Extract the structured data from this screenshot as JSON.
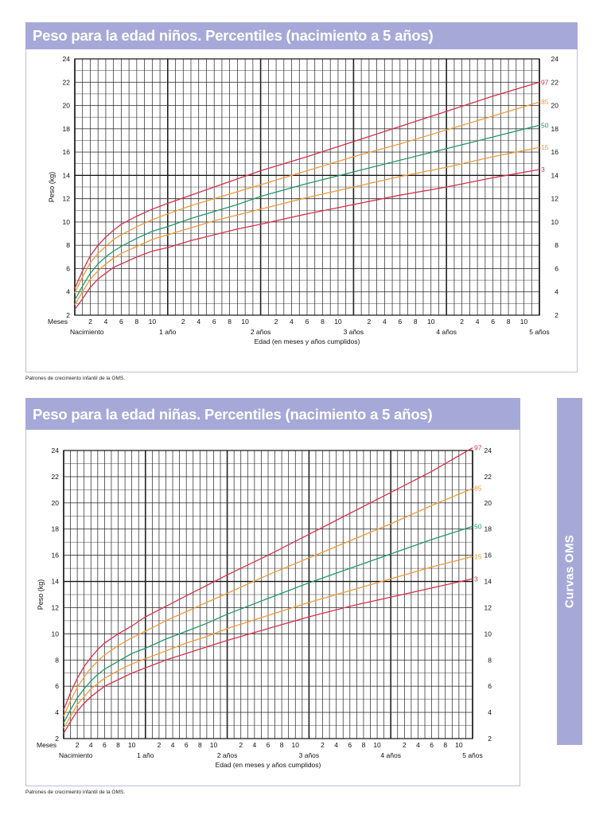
{
  "source_note": "Patrones de crecimiento infantil de la OMS.",
  "side_tab": {
    "label": "Curvas OMS"
  },
  "colors": {
    "header_bg": "#a6a9d8",
    "grid": "#333333",
    "p97": "#d8314a",
    "p85": "#ef9a3a",
    "p50": "#1f9a6a",
    "p15": "#ef9a3a",
    "p3": "#d8314a"
  },
  "chart_data": [
    {
      "type": "line",
      "title": "Peso para la edad niños. Percentiles (nacimiento a 5 años)",
      "xlabel": "Edad (en meses y años cumplidos)",
      "ylabel": "Peso (kg)",
      "months_label": "Meses",
      "xlim": [
        0,
        60
      ],
      "ylim": [
        2,
        24
      ],
      "yticks": [
        2,
        4,
        6,
        8,
        10,
        12,
        14,
        16,
        18,
        20,
        22,
        24
      ],
      "month_tick_labels": [
        "2",
        "4",
        "6",
        "8",
        "10"
      ],
      "year_labels": [
        "Nacimiento",
        "1 año",
        "2 años",
        "3 años",
        "4 años",
        "5 años"
      ],
      "x": [
        0,
        1,
        2,
        3,
        4,
        5,
        6,
        8,
        10,
        12,
        15,
        18,
        21,
        24,
        30,
        36,
        42,
        48,
        54,
        60
      ],
      "series": [
        {
          "name": "97",
          "color": "#d8314a",
          "values": [
            4.3,
            5.8,
            7.1,
            8.0,
            8.7,
            9.3,
            9.8,
            10.5,
            11.1,
            11.6,
            12.3,
            13.0,
            13.7,
            14.4,
            15.6,
            16.9,
            18.2,
            19.5,
            20.8,
            22.0
          ]
        },
        {
          "name": "85",
          "color": "#ef9a3a",
          "values": [
            3.9,
            5.3,
            6.5,
            7.3,
            7.9,
            8.5,
            8.9,
            9.6,
            10.2,
            10.7,
            11.4,
            12.0,
            12.6,
            13.2,
            14.4,
            15.6,
            16.7,
            17.9,
            19.1,
            20.3
          ]
        },
        {
          "name": "50",
          "color": "#1f9a6a",
          "values": [
            3.3,
            4.5,
            5.6,
            6.4,
            7.0,
            7.5,
            7.9,
            8.6,
            9.2,
            9.6,
            10.3,
            10.9,
            11.5,
            12.2,
            13.3,
            14.3,
            15.3,
            16.3,
            17.3,
            18.3
          ]
        },
        {
          "name": "15",
          "color": "#ef9a3a",
          "values": [
            2.9,
            4.0,
            5.1,
            5.8,
            6.4,
            6.9,
            7.3,
            7.9,
            8.5,
            8.9,
            9.5,
            10.1,
            10.6,
            11.1,
            12.1,
            13.0,
            13.9,
            14.7,
            15.6,
            16.4
          ]
        },
        {
          "name": "3",
          "color": "#d8314a",
          "values": [
            2.5,
            3.4,
            4.4,
            5.1,
            5.6,
            6.1,
            6.4,
            7.0,
            7.5,
            7.8,
            8.4,
            8.9,
            9.4,
            9.8,
            10.7,
            11.5,
            12.3,
            13.0,
            13.8,
            14.5
          ]
        }
      ]
    },
    {
      "type": "line",
      "title": "Peso para la edad niñas. Percentiles (nacimiento a 5 años)",
      "xlabel": "Edad (en meses y años cumplidos)",
      "ylabel": "Peso (kg)",
      "months_label": "Meses",
      "xlim": [
        0,
        60
      ],
      "ylim": [
        2,
        24
      ],
      "yticks": [
        2,
        4,
        6,
        8,
        10,
        12,
        14,
        16,
        18,
        20,
        22,
        24
      ],
      "month_tick_labels": [
        "2",
        "4",
        "6",
        "8",
        "10"
      ],
      "year_labels": [
        "Nacimiento",
        "1 año",
        "2 años",
        "3 años",
        "4 años",
        "5 años"
      ],
      "x": [
        0,
        1,
        2,
        3,
        4,
        5,
        6,
        8,
        10,
        12,
        15,
        18,
        21,
        24,
        30,
        36,
        42,
        48,
        54,
        60
      ],
      "series": [
        {
          "name": "97",
          "color": "#d8314a",
          "values": [
            4.2,
            5.5,
            6.6,
            7.5,
            8.2,
            8.8,
            9.3,
            10.0,
            10.6,
            11.3,
            12.1,
            12.9,
            13.7,
            14.5,
            16.0,
            17.6,
            19.2,
            20.8,
            22.4,
            24.2
          ]
        },
        {
          "name": "85",
          "color": "#ef9a3a",
          "values": [
            3.7,
            4.9,
            5.9,
            6.7,
            7.4,
            7.9,
            8.4,
            9.1,
            9.7,
            10.2,
            11.0,
            11.7,
            12.4,
            13.1,
            14.5,
            15.8,
            17.1,
            18.4,
            19.8,
            21.1
          ]
        },
        {
          "name": "50",
          "color": "#1f9a6a",
          "values": [
            3.2,
            4.2,
            5.1,
            5.8,
            6.4,
            6.9,
            7.3,
            7.9,
            8.5,
            8.9,
            9.6,
            10.2,
            10.8,
            11.5,
            12.7,
            13.9,
            15.0,
            16.1,
            17.2,
            18.2
          ]
        },
        {
          "name": "15",
          "color": "#ef9a3a",
          "values": [
            2.8,
            3.7,
            4.6,
            5.2,
            5.8,
            6.2,
            6.6,
            7.2,
            7.7,
            8.1,
            8.7,
            9.3,
            9.8,
            10.4,
            11.4,
            12.4,
            13.3,
            14.2,
            15.1,
            15.9
          ]
        },
        {
          "name": "3",
          "color": "#d8314a",
          "values": [
            2.4,
            3.3,
            4.1,
            4.7,
            5.2,
            5.6,
            6.0,
            6.5,
            7.0,
            7.4,
            8.0,
            8.5,
            9.0,
            9.5,
            10.4,
            11.3,
            12.1,
            12.8,
            13.5,
            14.2
          ]
        }
      ]
    }
  ]
}
